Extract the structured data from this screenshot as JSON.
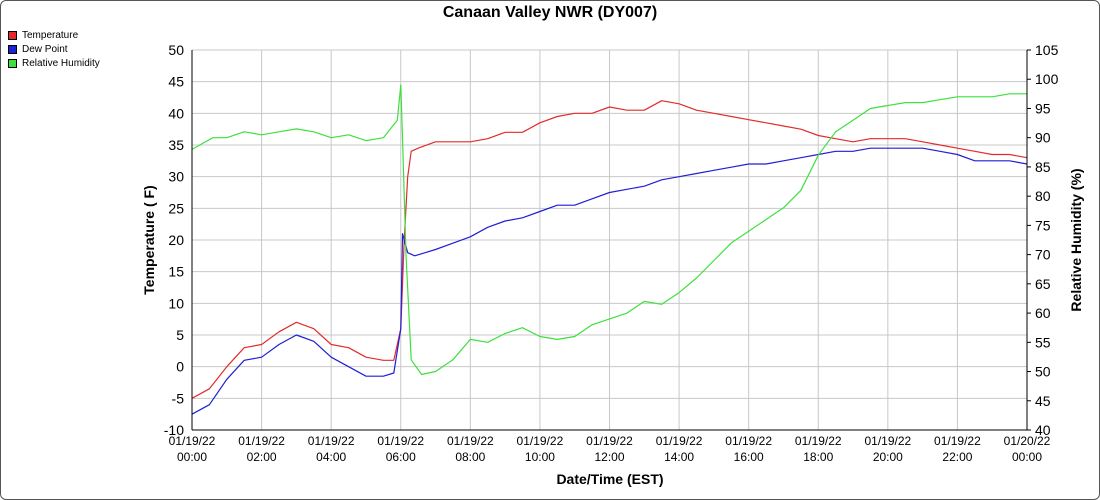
{
  "chart_data": {
    "type": "line",
    "title": "Canaan Valley NWR (DY007)",
    "xlabel": "Date/Time (EST)",
    "ylabel": "Temperature ( F)",
    "y2label": "Relative Humidity (%)",
    "ylim": [
      -10,
      50
    ],
    "yticks": [
      "50",
      "45",
      "40",
      "35",
      "30",
      "25",
      "20",
      "15",
      "10",
      "5",
      "0",
      "-5",
      "-10"
    ],
    "y2lim": [
      40,
      105
    ],
    "y2ticks": [
      "105",
      "100",
      "95",
      "90",
      "85",
      "80",
      "75",
      "70",
      "65",
      "60",
      "55",
      "50",
      "45",
      "40"
    ],
    "xlim": [
      0,
      24
    ],
    "xticks": [
      {
        "date": "01/19/22",
        "time": "00:00"
      },
      {
        "date": "01/19/22",
        "time": "02:00"
      },
      {
        "date": "01/19/22",
        "time": "04:00"
      },
      {
        "date": "01/19/22",
        "time": "06:00"
      },
      {
        "date": "01/19/22",
        "time": "08:00"
      },
      {
        "date": "01/19/22",
        "time": "10:00"
      },
      {
        "date": "01/19/22",
        "time": "12:00"
      },
      {
        "date": "01/19/22",
        "time": "14:00"
      },
      {
        "date": "01/19/22",
        "time": "16:00"
      },
      {
        "date": "01/19/22",
        "time": "18:00"
      },
      {
        "date": "01/19/22",
        "time": "20:00"
      },
      {
        "date": "01/19/22",
        "time": "22:00"
      },
      {
        "date": "01/20/22",
        "time": "00:00"
      }
    ],
    "legend": "top-left",
    "grid": true,
    "series": [
      {
        "name": "Temperature",
        "axis": "left",
        "color": "#e32b2b",
        "x": [
          0,
          0.5,
          1,
          1.5,
          2,
          2.5,
          3,
          3.5,
          4,
          4.5,
          5,
          5.5,
          5.8,
          6,
          6.1,
          6.2,
          6.3,
          6.5,
          7,
          7.5,
          8,
          8.5,
          9,
          9.5,
          10,
          10.5,
          11,
          11.5,
          12,
          12.5,
          13,
          13.5,
          14,
          14.5,
          15,
          15.5,
          16,
          16.5,
          17,
          17.5,
          18,
          18.5,
          19,
          19.5,
          20,
          20.5,
          21,
          21.5,
          22,
          22.5,
          23,
          23.5,
          24
        ],
        "y": [
          -5,
          -3.5,
          0,
          3,
          3.5,
          5.5,
          7,
          6,
          3.5,
          3,
          1.5,
          1,
          1,
          6,
          20,
          30,
          34,
          34.5,
          35.5,
          35.5,
          35.5,
          36,
          37,
          37,
          38.5,
          39.5,
          40,
          40,
          41,
          40.5,
          40.5,
          42,
          41.5,
          40.5,
          40,
          39.5,
          39,
          38.5,
          38,
          37.5,
          36.5,
          36,
          35.5,
          36,
          36,
          36,
          35.5,
          35,
          34.5,
          34,
          33.5,
          33.5,
          33
        ]
      },
      {
        "name": "Dew Point",
        "axis": "left",
        "color": "#1f1fd4",
        "x": [
          0,
          0.5,
          1,
          1.5,
          2,
          2.5,
          3,
          3.5,
          4,
          4.5,
          5,
          5.5,
          5.8,
          6,
          6.05,
          6.2,
          6.4,
          6.7,
          7,
          7.5,
          8,
          8.5,
          9,
          9.5,
          10,
          10.5,
          11,
          11.5,
          12,
          12.5,
          13,
          13.5,
          14,
          14.5,
          15,
          15.5,
          16,
          16.5,
          17,
          17.5,
          18,
          18.5,
          19,
          19.5,
          20,
          20.5,
          21,
          21.5,
          22,
          22.5,
          23,
          23.5,
          24
        ],
        "y": [
          -7.5,
          -6,
          -2,
          1,
          1.5,
          3.5,
          5,
          4,
          1.5,
          0,
          -1.5,
          -1.5,
          -1,
          6,
          21,
          18,
          17.5,
          18,
          18.5,
          19.5,
          20.5,
          22,
          23,
          23.5,
          24.5,
          25.5,
          25.5,
          26.5,
          27.5,
          28,
          28.5,
          29.5,
          30,
          30.5,
          31,
          31.5,
          32,
          32,
          32.5,
          33,
          33.5,
          34,
          34,
          34.5,
          34.5,
          34.5,
          34.5,
          34,
          33.5,
          32.5,
          32.5,
          32.5,
          32
        ]
      },
      {
        "name": "Relative Humidity",
        "axis": "right",
        "color": "#3ee03e",
        "x": [
          0,
          0.3,
          0.6,
          1,
          1.5,
          2,
          2.5,
          3,
          3.5,
          4,
          4.5,
          5,
          5.5,
          5.9,
          6,
          6.05,
          6.15,
          6.3,
          6.6,
          7,
          7.5,
          8,
          8.5,
          9,
          9.5,
          10,
          10.5,
          11,
          11.5,
          12,
          12.5,
          13,
          13.5,
          14,
          14.5,
          15,
          15.5,
          16,
          16.5,
          17,
          17.5,
          18,
          18.5,
          19,
          19.5,
          20,
          20.5,
          21,
          21.5,
          22,
          22.5,
          23,
          23.5,
          24
        ],
        "y": [
          88,
          89,
          90,
          90,
          91,
          90.5,
          91,
          91.5,
          91,
          90,
          90.5,
          89.5,
          90,
          93,
          99,
          90,
          70,
          52,
          49.5,
          50,
          52,
          55.5,
          55,
          56.5,
          57.5,
          56,
          55.5,
          56,
          58,
          59,
          60,
          62,
          61.5,
          63.5,
          66,
          69,
          72,
          74,
          76,
          78,
          81,
          87,
          91,
          93,
          95,
          95.5,
          96,
          96,
          96.5,
          97,
          97,
          97,
          97.5,
          97.5
        ]
      }
    ]
  }
}
